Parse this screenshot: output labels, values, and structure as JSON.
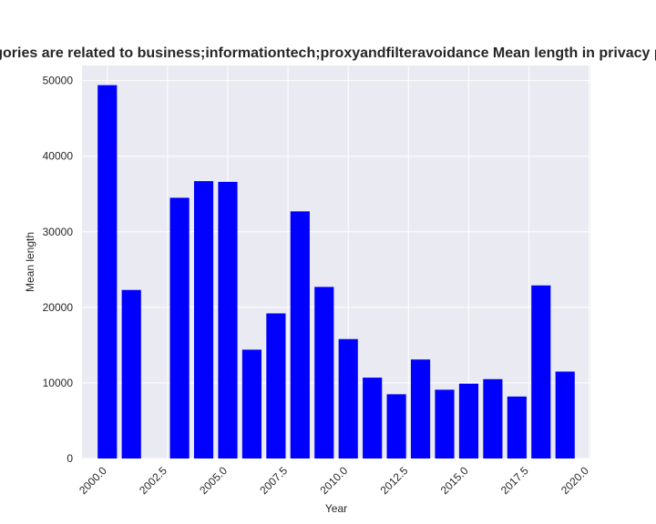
{
  "chart_data": {
    "type": "bar",
    "title": "Categories are related to business;informationtech;proxyandfilteravoidance Mean length in privacy policies",
    "xlabel": "Year",
    "ylabel": "Mean length",
    "x": [
      2000,
      2001,
      2003,
      2004,
      2005,
      2006,
      2007,
      2008,
      2009,
      2010,
      2011,
      2012,
      2013,
      2014,
      2015,
      2016,
      2017,
      2018,
      2019
    ],
    "values": [
      49400,
      22300,
      34500,
      36700,
      36600,
      14400,
      19200,
      32700,
      22700,
      15800,
      10700,
      8500,
      13100,
      9100,
      9900,
      10500,
      8200,
      22900,
      11500
    ],
    "xlim": [
      1998.95,
      2020.05
    ],
    "ylim": [
      0,
      52000
    ],
    "xticks": [
      2000,
      2002.5,
      2005,
      2007.5,
      2010,
      2012.5,
      2015,
      2017.5,
      2020
    ],
    "xtick_labels": [
      "2000.0",
      "2002.5",
      "2005.0",
      "2007.5",
      "2010.0",
      "2012.5",
      "2015.0",
      "2017.5",
      "2020.0"
    ],
    "yticks": [
      0,
      10000,
      20000,
      30000,
      40000,
      50000
    ],
    "ytick_labels": [
      "0",
      "10000",
      "20000",
      "30000",
      "40000",
      "50000"
    ],
    "bar_color": "#0000ff",
    "background_color": "#eaeaf2",
    "grid": true,
    "legend": false
  }
}
